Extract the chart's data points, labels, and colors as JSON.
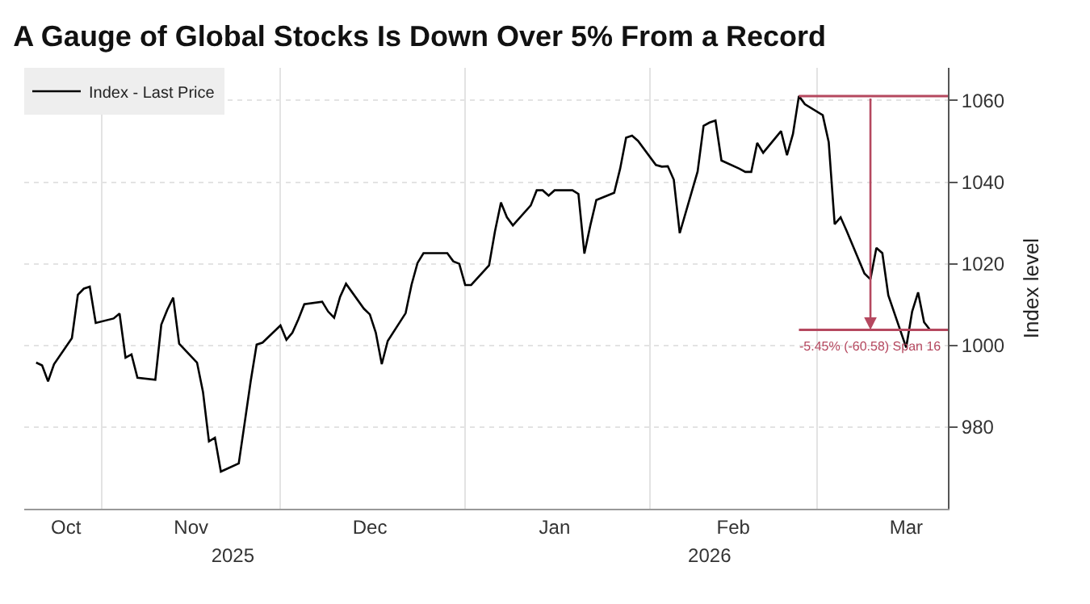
{
  "chart_data": {
    "type": "line",
    "title": "A Gauge of Global Stocks Is Down Over 5% From a Record",
    "ylabel": "Index level",
    "x": [
      "2025-10-21",
      "2025-10-22",
      "2025-10-23",
      "2025-10-24",
      "2025-10-27",
      "2025-10-28",
      "2025-10-29",
      "2025-10-30",
      "2025-10-31",
      "2025-11-03",
      "2025-11-04",
      "2025-11-05",
      "2025-11-06",
      "2025-11-07",
      "2025-11-10",
      "2025-11-11",
      "2025-11-12",
      "2025-11-13",
      "2025-11-14",
      "2025-11-17",
      "2025-11-18",
      "2025-11-19",
      "2025-11-20",
      "2025-11-21",
      "2025-11-24",
      "2025-11-25",
      "2025-11-26",
      "2025-11-27",
      "2025-11-28",
      "2025-12-01",
      "2025-12-02",
      "2025-12-03",
      "2025-12-04",
      "2025-12-05",
      "2025-12-08",
      "2025-12-09",
      "2025-12-10",
      "2025-12-11",
      "2025-12-12",
      "2025-12-15",
      "2025-12-16",
      "2025-12-17",
      "2025-12-18",
      "2025-12-19",
      "2025-12-22",
      "2025-12-23",
      "2025-12-24",
      "2025-12-25",
      "2025-12-26",
      "2025-12-29",
      "2025-12-30",
      "2025-12-31",
      "2026-01-01",
      "2026-01-02",
      "2026-01-05",
      "2026-01-06",
      "2026-01-07",
      "2026-01-08",
      "2026-01-09",
      "2026-01-12",
      "2026-01-13",
      "2026-01-14",
      "2026-01-15",
      "2026-01-16",
      "2026-01-19",
      "2026-01-20",
      "2026-01-21",
      "2026-01-22",
      "2026-01-23",
      "2026-01-26",
      "2026-01-27",
      "2026-01-28",
      "2026-01-29",
      "2026-01-30",
      "2026-02-02",
      "2026-02-03",
      "2026-02-04",
      "2026-02-05",
      "2026-02-06",
      "2026-02-09",
      "2026-02-10",
      "2026-02-11",
      "2026-02-12",
      "2026-02-13",
      "2026-02-16",
      "2026-02-17",
      "2026-02-18",
      "2026-02-19",
      "2026-02-20",
      "2026-02-23",
      "2026-02-24",
      "2026-02-25",
      "2026-02-26",
      "2026-02-27",
      "2026-03-02",
      "2026-03-03",
      "2026-03-04",
      "2026-03-05",
      "2026-03-06",
      "2026-03-09",
      "2026-03-10",
      "2026-03-11",
      "2026-03-12",
      "2026-03-13",
      "2026-03-16",
      "2026-03-17",
      "2026-03-18",
      "2026-03-19",
      "2026-03-20"
    ],
    "series": [
      {
        "name": "Index - Last Price",
        "color": "#000000",
        "values": [
          995.8,
          995.1,
          991.2,
          995.4,
          1001.8,
          1012.4,
          1013.9,
          1014.4,
          1005.5,
          1006.6,
          1007.8,
          997,
          997.8,
          992.1,
          991.6,
          1005.1,
          1008.7,
          1011.7,
          1000.4,
          995.8,
          988.6,
          976.5,
          977.4,
          969.1,
          971.1,
          981.1,
          991.2,
          1000.2,
          1000.7,
          1004.9,
          1001.4,
          1003.1,
          1006.4,
          1010.1,
          1010.7,
          1008.3,
          1006.8,
          1011.9,
          1015.1,
          1009,
          1007.6,
          1003.1,
          995.4,
          1001.1,
          1007.9,
          1014.9,
          1020.2,
          1022.6,
          1022.6,
          1022.6,
          1020.6,
          1020,
          1014.8,
          1014.8,
          1019.6,
          1028,
          1035,
          1031.4,
          1029.4,
          1034.3,
          1038,
          1038,
          1036.7,
          1038,
          1038,
          1037.1,
          1022.5,
          1029.4,
          1035.6,
          1037.4,
          1043.3,
          1050.9,
          1051.4,
          1050.1,
          1044.2,
          1043.8,
          1043.9,
          1040.6,
          1027.5,
          1042.6,
          1053.8,
          1054.6,
          1055.1,
          1045.3,
          1043.3,
          1042.5,
          1042.5,
          1049.6,
          1047.2,
          1052.5,
          1046.6,
          1051.8,
          1061.1,
          1059.1,
          1056.4,
          1049.8,
          1029.7,
          1031.4,
          1028.1,
          1017.6,
          1016.2,
          1023.9,
          1022.6,
          1012.3,
          999.5,
          1008.3,
          1013,
          1005.7,
          1003.8
        ]
      }
    ],
    "xlim": [
      "2025-10-19",
      "2026-03-23"
    ],
    "xticks": [
      {
        "value": "2025-10-26",
        "label": "Oct"
      },
      {
        "value": "2025-11-16",
        "label": "Nov"
      },
      {
        "value": "2025-12-16",
        "label": "Dec"
      },
      {
        "value": "2026-01-16",
        "label": "Jan"
      },
      {
        "value": "2026-02-15",
        "label": "Feb"
      },
      {
        "value": "2026-03-16",
        "label": "Mar"
      },
      {
        "value": "2025-11-01",
        "label": null
      },
      {
        "value": "2025-12-01",
        "label": null
      },
      {
        "value": "2026-01-01",
        "label": null
      },
      {
        "value": "2026-02-01",
        "label": null
      },
      {
        "value": "2026-03-01",
        "label": null
      }
    ],
    "x2lim": [
      "2025-10-19",
      "2026-03-23"
    ],
    "x2ticks": [
      {
        "value": "2025-11-23",
        "label": "2025"
      },
      {
        "value": "2026-02-11",
        "label": "2026"
      }
    ],
    "ylim": [
      960,
      1068
    ],
    "yticks": [
      980,
      1000,
      1020,
      1040,
      1060
    ],
    "ref_lines": [
      {
        "axis": "y",
        "value": 1061.1,
        "label": null,
        "color": "#b5485f"
      },
      {
        "axis": "y",
        "value": 1003.8,
        "label": null,
        "color": "#b5485f"
      }
    ],
    "annotations": [
      {
        "text": "-5.45% (-60.58) Span 16",
        "x": "2026-03-10",
        "y": 1003.8
      }
    ],
    "grid": true,
    "legend": "top left"
  }
}
